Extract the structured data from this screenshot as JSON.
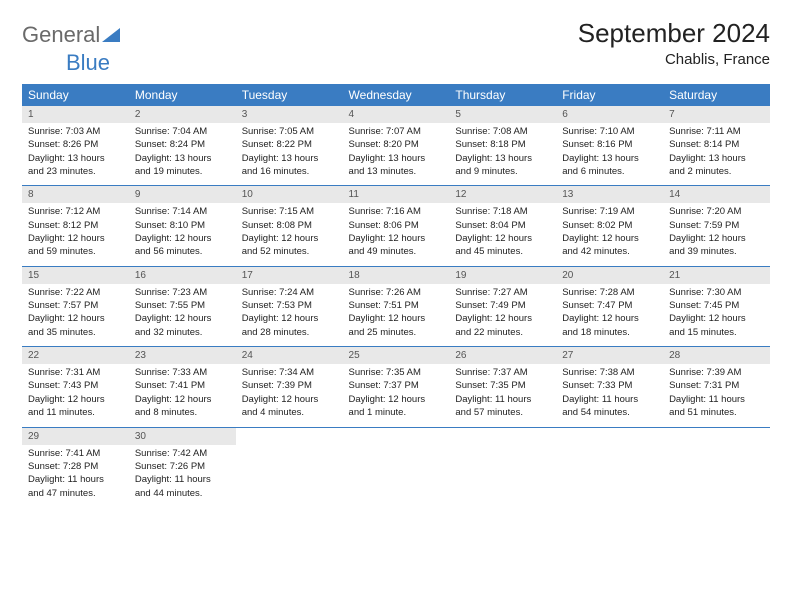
{
  "brand": {
    "part1": "General",
    "part2": "Blue"
  },
  "title": "September 2024",
  "location": "Chablis, France",
  "colors": {
    "header_bg": "#3a7cc2",
    "header_text": "#ffffff",
    "daynum_bg": "#e8e8e8",
    "row_border": "#3a7cc2",
    "logo_gray": "#6a6a6a",
    "logo_blue": "#3a7cc2"
  },
  "weekdays": [
    "Sunday",
    "Monday",
    "Tuesday",
    "Wednesday",
    "Thursday",
    "Friday",
    "Saturday"
  ],
  "weeks": [
    [
      {
        "n": "1",
        "sr": "Sunrise: 7:03 AM",
        "ss": "Sunset: 8:26 PM",
        "d1": "Daylight: 13 hours",
        "d2": "and 23 minutes."
      },
      {
        "n": "2",
        "sr": "Sunrise: 7:04 AM",
        "ss": "Sunset: 8:24 PM",
        "d1": "Daylight: 13 hours",
        "d2": "and 19 minutes."
      },
      {
        "n": "3",
        "sr": "Sunrise: 7:05 AM",
        "ss": "Sunset: 8:22 PM",
        "d1": "Daylight: 13 hours",
        "d2": "and 16 minutes."
      },
      {
        "n": "4",
        "sr": "Sunrise: 7:07 AM",
        "ss": "Sunset: 8:20 PM",
        "d1": "Daylight: 13 hours",
        "d2": "and 13 minutes."
      },
      {
        "n": "5",
        "sr": "Sunrise: 7:08 AM",
        "ss": "Sunset: 8:18 PM",
        "d1": "Daylight: 13 hours",
        "d2": "and 9 minutes."
      },
      {
        "n": "6",
        "sr": "Sunrise: 7:10 AM",
        "ss": "Sunset: 8:16 PM",
        "d1": "Daylight: 13 hours",
        "d2": "and 6 minutes."
      },
      {
        "n": "7",
        "sr": "Sunrise: 7:11 AM",
        "ss": "Sunset: 8:14 PM",
        "d1": "Daylight: 13 hours",
        "d2": "and 2 minutes."
      }
    ],
    [
      {
        "n": "8",
        "sr": "Sunrise: 7:12 AM",
        "ss": "Sunset: 8:12 PM",
        "d1": "Daylight: 12 hours",
        "d2": "and 59 minutes."
      },
      {
        "n": "9",
        "sr": "Sunrise: 7:14 AM",
        "ss": "Sunset: 8:10 PM",
        "d1": "Daylight: 12 hours",
        "d2": "and 56 minutes."
      },
      {
        "n": "10",
        "sr": "Sunrise: 7:15 AM",
        "ss": "Sunset: 8:08 PM",
        "d1": "Daylight: 12 hours",
        "d2": "and 52 minutes."
      },
      {
        "n": "11",
        "sr": "Sunrise: 7:16 AM",
        "ss": "Sunset: 8:06 PM",
        "d1": "Daylight: 12 hours",
        "d2": "and 49 minutes."
      },
      {
        "n": "12",
        "sr": "Sunrise: 7:18 AM",
        "ss": "Sunset: 8:04 PM",
        "d1": "Daylight: 12 hours",
        "d2": "and 45 minutes."
      },
      {
        "n": "13",
        "sr": "Sunrise: 7:19 AM",
        "ss": "Sunset: 8:02 PM",
        "d1": "Daylight: 12 hours",
        "d2": "and 42 minutes."
      },
      {
        "n": "14",
        "sr": "Sunrise: 7:20 AM",
        "ss": "Sunset: 7:59 PM",
        "d1": "Daylight: 12 hours",
        "d2": "and 39 minutes."
      }
    ],
    [
      {
        "n": "15",
        "sr": "Sunrise: 7:22 AM",
        "ss": "Sunset: 7:57 PM",
        "d1": "Daylight: 12 hours",
        "d2": "and 35 minutes."
      },
      {
        "n": "16",
        "sr": "Sunrise: 7:23 AM",
        "ss": "Sunset: 7:55 PM",
        "d1": "Daylight: 12 hours",
        "d2": "and 32 minutes."
      },
      {
        "n": "17",
        "sr": "Sunrise: 7:24 AM",
        "ss": "Sunset: 7:53 PM",
        "d1": "Daylight: 12 hours",
        "d2": "and 28 minutes."
      },
      {
        "n": "18",
        "sr": "Sunrise: 7:26 AM",
        "ss": "Sunset: 7:51 PM",
        "d1": "Daylight: 12 hours",
        "d2": "and 25 minutes."
      },
      {
        "n": "19",
        "sr": "Sunrise: 7:27 AM",
        "ss": "Sunset: 7:49 PM",
        "d1": "Daylight: 12 hours",
        "d2": "and 22 minutes."
      },
      {
        "n": "20",
        "sr": "Sunrise: 7:28 AM",
        "ss": "Sunset: 7:47 PM",
        "d1": "Daylight: 12 hours",
        "d2": "and 18 minutes."
      },
      {
        "n": "21",
        "sr": "Sunrise: 7:30 AM",
        "ss": "Sunset: 7:45 PM",
        "d1": "Daylight: 12 hours",
        "d2": "and 15 minutes."
      }
    ],
    [
      {
        "n": "22",
        "sr": "Sunrise: 7:31 AM",
        "ss": "Sunset: 7:43 PM",
        "d1": "Daylight: 12 hours",
        "d2": "and 11 minutes."
      },
      {
        "n": "23",
        "sr": "Sunrise: 7:33 AM",
        "ss": "Sunset: 7:41 PM",
        "d1": "Daylight: 12 hours",
        "d2": "and 8 minutes."
      },
      {
        "n": "24",
        "sr": "Sunrise: 7:34 AM",
        "ss": "Sunset: 7:39 PM",
        "d1": "Daylight: 12 hours",
        "d2": "and 4 minutes."
      },
      {
        "n": "25",
        "sr": "Sunrise: 7:35 AM",
        "ss": "Sunset: 7:37 PM",
        "d1": "Daylight: 12 hours",
        "d2": "and 1 minute."
      },
      {
        "n": "26",
        "sr": "Sunrise: 7:37 AM",
        "ss": "Sunset: 7:35 PM",
        "d1": "Daylight: 11 hours",
        "d2": "and 57 minutes."
      },
      {
        "n": "27",
        "sr": "Sunrise: 7:38 AM",
        "ss": "Sunset: 7:33 PM",
        "d1": "Daylight: 11 hours",
        "d2": "and 54 minutes."
      },
      {
        "n": "28",
        "sr": "Sunrise: 7:39 AM",
        "ss": "Sunset: 7:31 PM",
        "d1": "Daylight: 11 hours",
        "d2": "and 51 minutes."
      }
    ],
    [
      {
        "n": "29",
        "sr": "Sunrise: 7:41 AM",
        "ss": "Sunset: 7:28 PM",
        "d1": "Daylight: 11 hours",
        "d2": "and 47 minutes."
      },
      {
        "n": "30",
        "sr": "Sunrise: 7:42 AM",
        "ss": "Sunset: 7:26 PM",
        "d1": "Daylight: 11 hours",
        "d2": "and 44 minutes."
      },
      {
        "empty": true
      },
      {
        "empty": true
      },
      {
        "empty": true
      },
      {
        "empty": true
      },
      {
        "empty": true
      }
    ]
  ]
}
